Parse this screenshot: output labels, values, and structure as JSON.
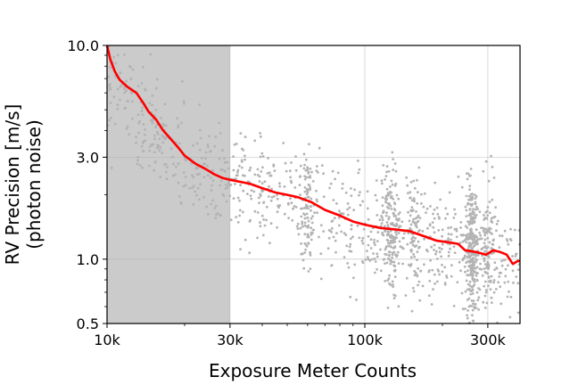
{
  "chart_data": {
    "type": "scatter",
    "title": "",
    "xlabel": "Exposure Meter Counts",
    "ylabel_lines": [
      "RV Precision [m/s]",
      "(photon noise)"
    ],
    "x_scale": "log",
    "y_scale": "log",
    "xlim": [
      10000,
      400000
    ],
    "ylim": [
      0.5,
      10.0
    ],
    "x_ticks": [
      {
        "value": 10000,
        "label": "10k"
      },
      {
        "value": 30000,
        "label": "30k"
      },
      {
        "value": 100000,
        "label": "100k"
      },
      {
        "value": 300000,
        "label": "300k"
      }
    ],
    "y_ticks": [
      {
        "value": 0.5,
        "label": "0.5"
      },
      {
        "value": 1.0,
        "label": "1.0"
      },
      {
        "value": 3.0,
        "label": "3.0"
      },
      {
        "value": 10.0,
        "label": "10.0"
      }
    ],
    "grid": true,
    "shaded_region": {
      "x_range": [
        10000,
        30000
      ],
      "color": "#cbcbcb"
    },
    "series": [
      {
        "kind": "scatter",
        "color": "#b3b3b3",
        "description_points": [
          [
            10500,
            7.0
          ],
          [
            11000,
            6.2
          ],
          [
            12000,
            5.5
          ],
          [
            13000,
            4.8
          ],
          [
            14000,
            4.2
          ],
          [
            15000,
            3.8
          ],
          [
            16000,
            3.6
          ],
          [
            17000,
            3.4
          ],
          [
            18000,
            3.0
          ],
          [
            20000,
            2.8
          ],
          [
            22000,
            2.6
          ],
          [
            25000,
            2.4
          ],
          [
            28000,
            2.3
          ],
          [
            32000,
            2.2
          ],
          [
            35000,
            2.1
          ],
          [
            40000,
            2.0
          ],
          [
            45000,
            1.95
          ],
          [
            50000,
            1.9
          ],
          [
            60000,
            1.8
          ],
          [
            70000,
            1.6
          ],
          [
            80000,
            1.5
          ],
          [
            90000,
            1.45
          ],
          [
            100000,
            1.4
          ],
          [
            120000,
            1.35
          ],
          [
            150000,
            1.3
          ],
          [
            180000,
            1.2
          ],
          [
            200000,
            1.18
          ],
          [
            250000,
            1.1
          ],
          [
            300000,
            1.05
          ],
          [
            350000,
            1.0
          ]
        ]
      },
      {
        "kind": "line",
        "color": "#ff0000",
        "points": [
          [
            10000,
            10.0
          ],
          [
            10300,
            8.6
          ],
          [
            10700,
            7.6
          ],
          [
            11200,
            6.9
          ],
          [
            12000,
            6.4
          ],
          [
            13000,
            6.0
          ],
          [
            13800,
            5.4
          ],
          [
            14500,
            4.9
          ],
          [
            15500,
            4.5
          ],
          [
            16500,
            4.0
          ],
          [
            17500,
            3.7
          ],
          [
            19000,
            3.3
          ],
          [
            20000,
            3.05
          ],
          [
            22000,
            2.8
          ],
          [
            24000,
            2.65
          ],
          [
            26000,
            2.5
          ],
          [
            28000,
            2.4
          ],
          [
            30000,
            2.35
          ],
          [
            33000,
            2.3
          ],
          [
            36000,
            2.25
          ],
          [
            40000,
            2.15
          ],
          [
            45000,
            2.05
          ],
          [
            50000,
            2.0
          ],
          [
            55000,
            1.95
          ],
          [
            62000,
            1.85
          ],
          [
            70000,
            1.7
          ],
          [
            80000,
            1.6
          ],
          [
            90000,
            1.5
          ],
          [
            100000,
            1.45
          ],
          [
            115000,
            1.4
          ],
          [
            130000,
            1.38
          ],
          [
            150000,
            1.35
          ],
          [
            170000,
            1.28
          ],
          [
            190000,
            1.22
          ],
          [
            210000,
            1.2
          ],
          [
            230000,
            1.18
          ],
          [
            245000,
            1.1
          ],
          [
            270000,
            1.08
          ],
          [
            295000,
            1.05
          ],
          [
            315000,
            1.1
          ],
          [
            335000,
            1.08
          ],
          [
            355000,
            1.05
          ],
          [
            375000,
            0.95
          ],
          [
            392000,
            0.98
          ],
          [
            400000,
            0.98
          ]
        ]
      }
    ]
  }
}
